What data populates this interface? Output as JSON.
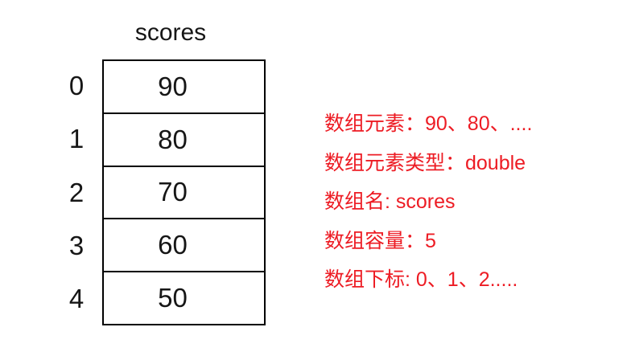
{
  "diagram": {
    "title": "scores",
    "array": {
      "rows": [
        {
          "index": "0",
          "value": "90"
        },
        {
          "index": "1",
          "value": "80"
        },
        {
          "index": "2",
          "value": "70"
        },
        {
          "index": "3",
          "value": "60"
        },
        {
          "index": "4",
          "value": "50"
        }
      ]
    }
  },
  "annotations": {
    "text_color": "#ed1c24",
    "lines": [
      "数组元素：90、80、....",
      "数组元素类型：double",
      "数组名: scores",
      "数组容量：5",
      "数组下标: 0、1、2....."
    ]
  }
}
